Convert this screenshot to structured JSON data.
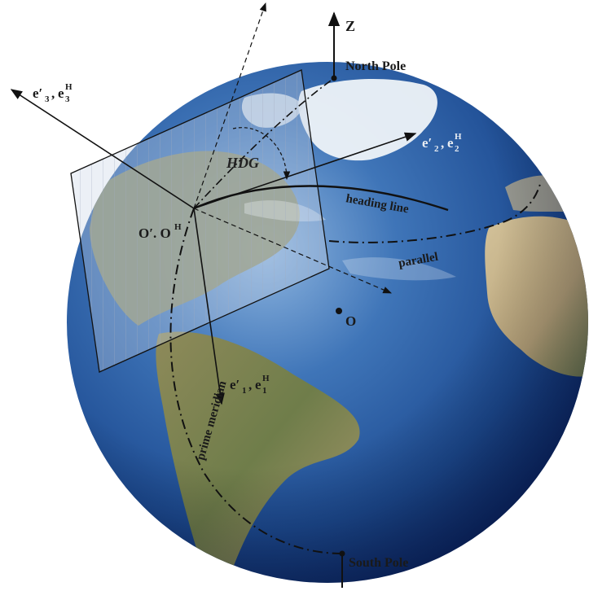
{
  "labels": {
    "z_axis": "Z",
    "north_pole": "North Pole",
    "south_pole": "South Pole",
    "e3_prime": "e′",
    "e3_prime_sub": "3",
    "e3_h": "e",
    "e3_h_sup": "H",
    "e3_h_sub": "3",
    "e2_prime": "e′",
    "e2_prime_sub": "2",
    "e2_h": "e",
    "e2_h_sup": "H",
    "e2_h_sub": "2",
    "e1_prime": "e′",
    "e1_prime_sub": "1",
    "e1_h": "e",
    "e1_h_sup": "H",
    "e1_h_sub": "1",
    "comma": ",",
    "hdg": "HDG",
    "heading_line": "heading line",
    "parallel": "parallel",
    "prime_meridian": "prime meridian",
    "origin_local": "O′",
    "origin_local_sep": ". O",
    "origin_local_sup": "H",
    "origin_center": "O"
  },
  "colors": {
    "ocean_dark": "#0d2a6b",
    "ocean_mid": "#2f63a8",
    "ocean_light": "#6f9ed0",
    "land_green": "#6f7d4a",
    "land_tan": "#b9a47a",
    "ice": "#eef3f8",
    "plane_fill": "#c9d3e4",
    "ink": "#111111"
  }
}
